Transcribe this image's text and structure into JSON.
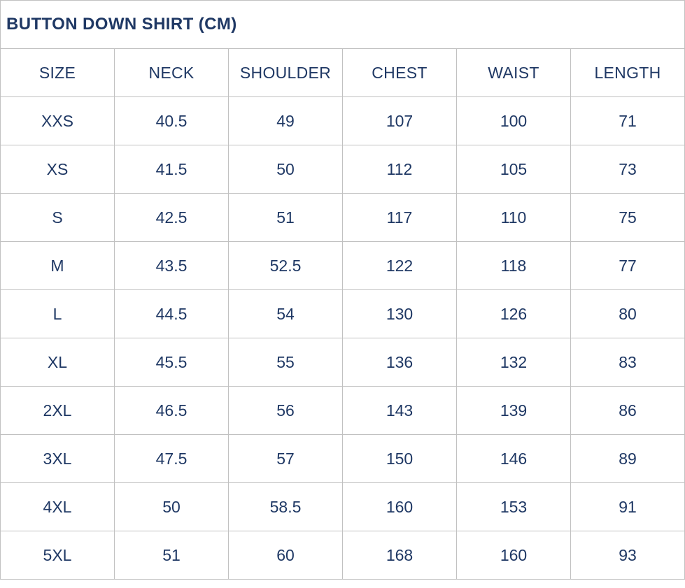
{
  "title": "BUTTON DOWN SHIRT (CM)",
  "colors": {
    "text": "#1f3864",
    "border": "#c1c1c1",
    "background": "#ffffff"
  },
  "chart_data": {
    "type": "table",
    "title": "BUTTON DOWN SHIRT (CM)",
    "columns": [
      "SIZE",
      "NECK",
      "SHOULDER",
      "CHEST",
      "WAIST",
      "LENGTH"
    ],
    "rows": [
      [
        "XXS",
        "40.5",
        "49",
        "107",
        "100",
        "71"
      ],
      [
        "XS",
        "41.5",
        "50",
        "112",
        "105",
        "73"
      ],
      [
        "S",
        "42.5",
        "51",
        "117",
        "110",
        "75"
      ],
      [
        "M",
        "43.5",
        "52.5",
        "122",
        "118",
        "77"
      ],
      [
        "L",
        "44.5",
        "54",
        "130",
        "126",
        "80"
      ],
      [
        "XL",
        "45.5",
        "55",
        "136",
        "132",
        "83"
      ],
      [
        "2XL",
        "46.5",
        "56",
        "143",
        "139",
        "86"
      ],
      [
        "3XL",
        "47.5",
        "57",
        "150",
        "146",
        "89"
      ],
      [
        "4XL",
        "50",
        "58.5",
        "160",
        "153",
        "91"
      ],
      [
        "5XL",
        "51",
        "60",
        "168",
        "160",
        "93"
      ]
    ]
  }
}
